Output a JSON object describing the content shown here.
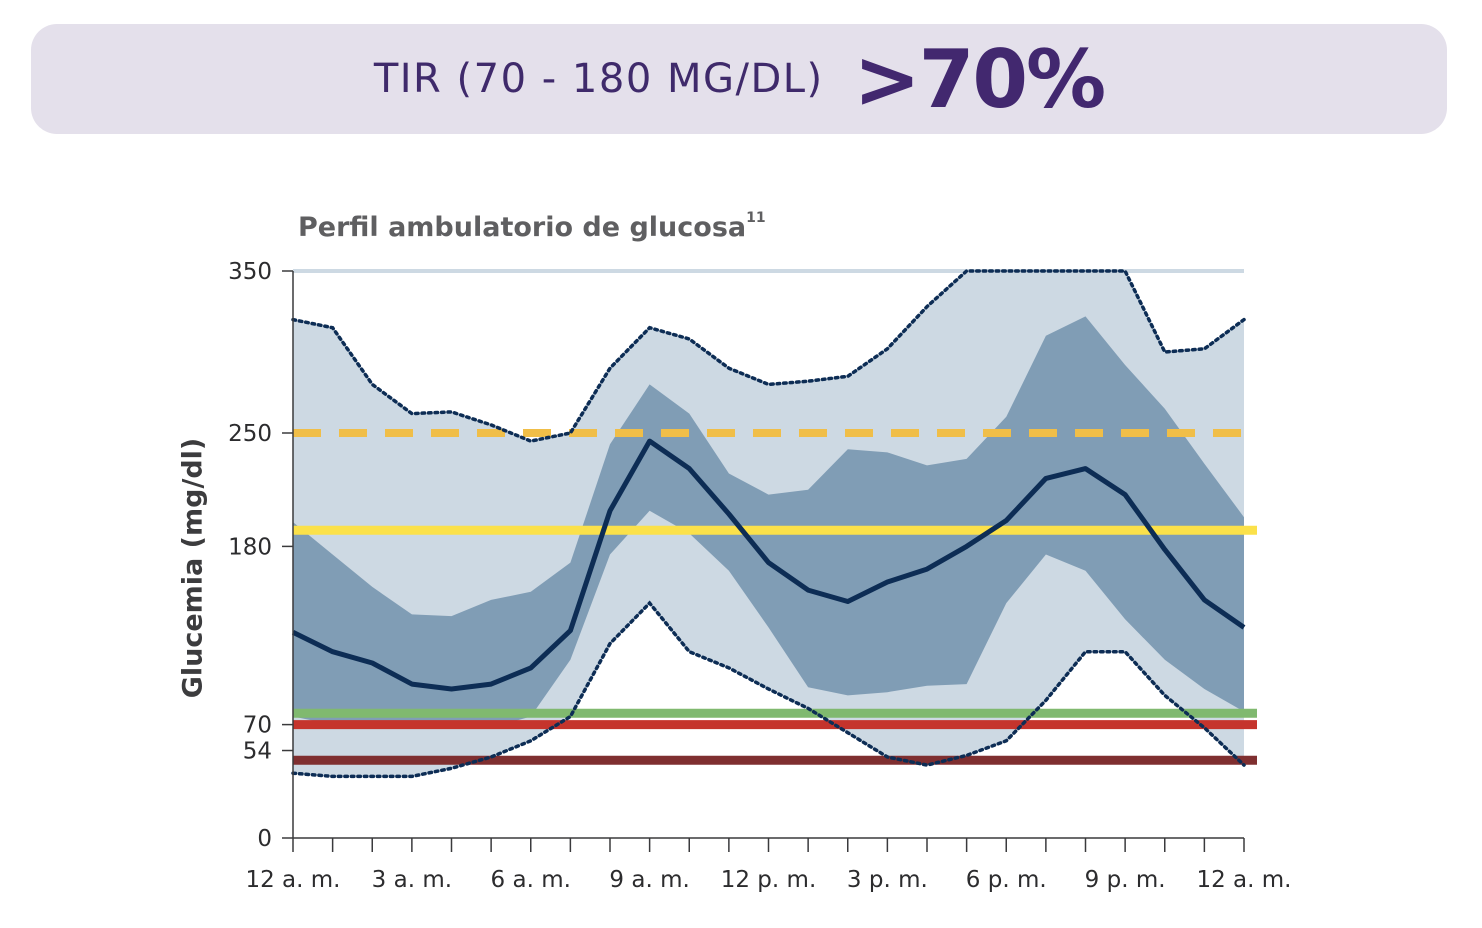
{
  "banner": {
    "label": "TIR (70 - 180 MG/DL)",
    "value": ">70%"
  },
  "chart_data": {
    "type": "area",
    "title": "Perfil ambulatorio de glucosa",
    "title_sup": "11",
    "ylabel": "Glucemia (mg/dl)",
    "xlabel": "",
    "ylim": [
      0,
      350
    ],
    "yticks": [
      0,
      54,
      70,
      180,
      250,
      350
    ],
    "xtick_labels": [
      "12 a. m.",
      "3 a. m.",
      "6 a. m.",
      "9 a. m.",
      "12 p. m.",
      "3 p. m.",
      "6 p. m.",
      "9 p. m.",
      "12 a. m."
    ],
    "x_hours": [
      0,
      1,
      2,
      3,
      4,
      5,
      6,
      7,
      8,
      9,
      10,
      11,
      12,
      13,
      14,
      15,
      16,
      17,
      18,
      19,
      20,
      21,
      22,
      23,
      24
    ],
    "series": [
      {
        "role": "p95",
        "style": "dotted",
        "color": "#0d2d55",
        "values": [
          320,
          315,
          280,
          262,
          263,
          255,
          245,
          250,
          290,
          315,
          308,
          290,
          280,
          282,
          285,
          302,
          328,
          350,
          350,
          350,
          350,
          350,
          300,
          302,
          320
        ]
      },
      {
        "role": "p75",
        "style": "band",
        "color": "#809db5",
        "values": [
          195,
          175,
          155,
          138,
          137,
          147,
          152,
          170,
          243,
          280,
          262,
          225,
          212,
          215,
          240,
          238,
          230,
          234,
          260,
          310,
          322,
          292,
          265,
          231,
          198
        ]
      },
      {
        "role": "median",
        "style": "solid",
        "color": "#0d2d55",
        "values": [
          127,
          115,
          108,
          95,
          92,
          95,
          105,
          128,
          202,
          245,
          228,
          200,
          170,
          153,
          146,
          158,
          166,
          180,
          196,
          222,
          228,
          212,
          178,
          147,
          130
        ]
      },
      {
        "role": "p25",
        "style": "band",
        "color": "#809db5",
        "values": [
          75,
          70,
          70,
          71,
          70,
          68,
          75,
          110,
          175,
          202,
          188,
          165,
          130,
          93,
          88,
          90,
          94,
          95,
          145,
          175,
          165,
          135,
          110,
          92,
          78
        ]
      },
      {
        "role": "p5",
        "style": "dotted",
        "color": "#0d2d55",
        "values": [
          40,
          38,
          38,
          38,
          43,
          50,
          60,
          75,
          120,
          145,
          115,
          105,
          92,
          80,
          65,
          50,
          45,
          51,
          60,
          85,
          115,
          115,
          88,
          68,
          45
        ]
      }
    ],
    "outer_band_color": "#cdd9e3",
    "reference_lines": [
      {
        "value": 250,
        "style": "dashed",
        "color": "#f0be48"
      },
      {
        "value": 190,
        "style": "solid",
        "color": "#fbe14a"
      },
      {
        "value": 77,
        "style": "solid",
        "color": "#80b96f"
      },
      {
        "value": 70,
        "style": "solid",
        "color": "#c5342c"
      },
      {
        "value": 48,
        "style": "solid",
        "color": "#7f2f30"
      }
    ]
  }
}
